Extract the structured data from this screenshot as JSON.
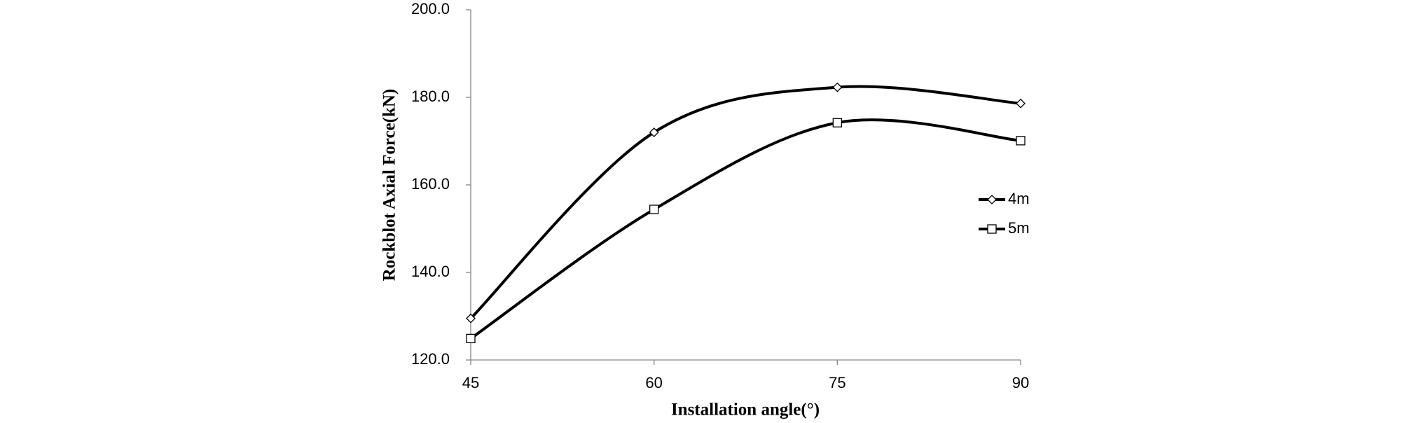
{
  "chart_data": {
    "type": "line",
    "smooth": true,
    "x_label": "Installation angle(°)",
    "y_label": "Rockblot Axial Force(kN)",
    "x": [
      45,
      60,
      75,
      90
    ],
    "series": [
      {
        "name": "4m",
        "color": "#000000",
        "marker": "diamond",
        "values": [
          129.5,
          172,
          182.3,
          178.6
        ]
      },
      {
        "name": "5m",
        "color": "#000000",
        "marker": "square",
        "values": [
          124.9,
          154.4,
          174.2,
          170.1
        ]
      }
    ],
    "xlim": [
      45,
      90
    ],
    "xticks": [
      45,
      60,
      75,
      90
    ],
    "ylim": [
      120,
      200
    ],
    "yticks": [
      {
        "value": 120,
        "label": "120.0"
      },
      {
        "value": 140,
        "label": "140.0"
      },
      {
        "value": 160,
        "label": "160.0"
      },
      {
        "value": 180,
        "label": "180.0"
      },
      {
        "value": 200,
        "label": "200.0"
      }
    ],
    "grid": false,
    "legend": "right"
  }
}
